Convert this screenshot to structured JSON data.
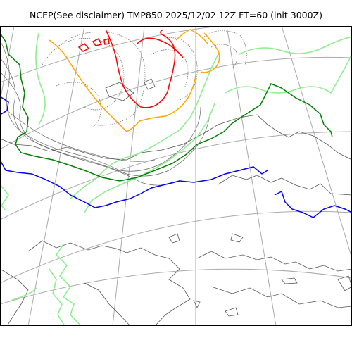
{
  "title": "NCEP(See disclaimer) TMP850 2025/12/02 12Z FT=60 (init 3000Z)",
  "colors": {
    "graticule": "#aaaaaa",
    "coastline": "#555555",
    "isotherm_minor": "#666666",
    "isotherm_light_green": "#90ee90",
    "isotherm_green": "#008000",
    "isotherm_blue": "#0000ff",
    "isotherm_orange": "#ffa500",
    "isotherm_red": "#ff0000",
    "frame": "#000000"
  }
}
